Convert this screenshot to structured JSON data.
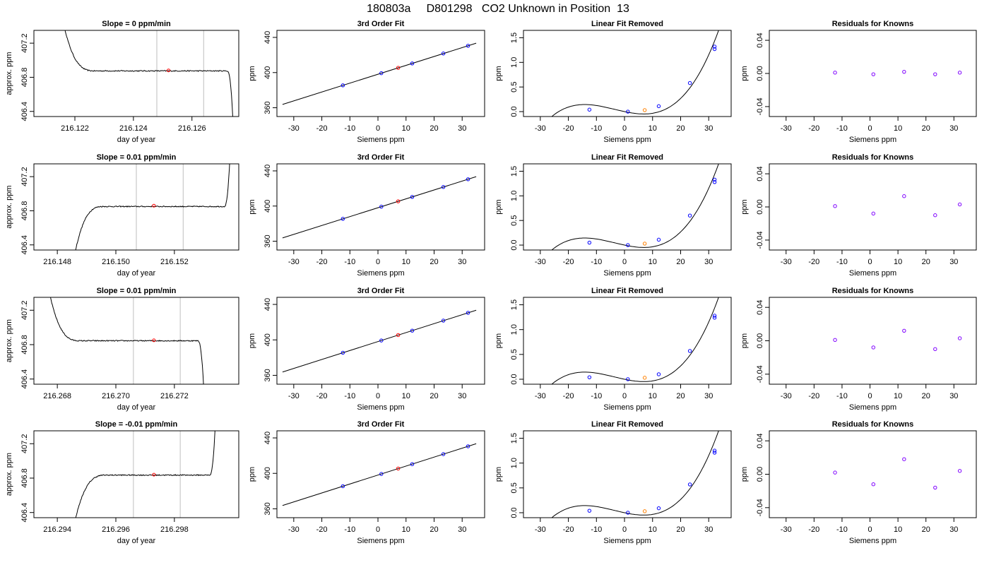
{
  "page_title": "180803a     D801298   CO2 Unknown in Position  13",
  "chart_data": [
    {
      "row": 1,
      "panel": "trace",
      "type": "line",
      "title": "Slope =  0  ppm/min",
      "xlabel": "day of year",
      "ylabel": "approx. ppm",
      "xlim": [
        216.1206,
        216.1276
      ],
      "ylim": [
        406.34,
        407.35
      ],
      "xticks": [
        216.122,
        216.124,
        216.126
      ],
      "xtick_labels": [
        "216.122",
        "216.124",
        "216.126"
      ],
      "yticks": [
        406.4,
        406.8,
        407.2
      ],
      "ytick_labels": [
        "406.4",
        "406.8",
        "407.2"
      ],
      "vlines": [
        216.1248,
        216.1264
      ],
      "shape": {
        "start": 216.1216,
        "rise": 216.1227,
        "fall": 216.1272,
        "end": 216.1274,
        "level": 406.875,
        "pre": 407.45,
        "post": 406.3,
        "noise": 0.012
      },
      "marker": {
        "x": 216.1252,
        "y": 406.88,
        "color": "#ff0000"
      }
    },
    {
      "row": 1,
      "panel": "fit",
      "type": "line",
      "title": "3rd Order Fit",
      "xlabel": "Siemens ppm",
      "ylabel": "ppm",
      "xlim": [
        -36,
        38
      ],
      "ylim": [
        350,
        448
      ],
      "xticks": [
        -30,
        -20,
        -10,
        0,
        10,
        20,
        30
      ],
      "yticks": [
        360,
        400,
        440
      ],
      "line": {
        "slope": 1.01,
        "intercept": 398.1,
        "x0": -34,
        "x1": 35
      },
      "points": [
        {
          "x": -12.5,
          "y": 385.5,
          "color": "#0000ff"
        },
        {
          "x": 1.2,
          "y": 399.3,
          "color": "#0000ff"
        },
        {
          "x": 7.2,
          "y": 405.4,
          "color": "#ff0000"
        },
        {
          "x": 12.2,
          "y": 410.4,
          "color": "#0000ff"
        },
        {
          "x": 23.3,
          "y": 421.7,
          "color": "#0000ff"
        },
        {
          "x": 32.1,
          "y": 430.5,
          "color": "#0000ff"
        }
      ]
    },
    {
      "row": 1,
      "panel": "linear_removed",
      "type": "scatter",
      "title": "Linear Fit Removed",
      "xlabel": "Siemens ppm",
      "ylabel": "ppm",
      "xlim": [
        -36,
        38
      ],
      "ylim": [
        -0.1,
        1.65
      ],
      "xticks": [
        -30,
        -20,
        -10,
        0,
        10,
        20,
        30
      ],
      "yticks": [
        0.0,
        0.5,
        1.0,
        1.5
      ],
      "ytick_labels": [
        "0.0",
        "0.5",
        "1.0",
        "1.5"
      ],
      "curve": {
        "c": [
          0.0,
          -0.012,
          0.00045,
          4.1e-05
        ],
        "x0": -33,
        "x1": 35
      },
      "points": [
        {
          "x": -12.5,
          "y": 0.04,
          "color": "#0000ff"
        },
        {
          "x": 1.2,
          "y": 0.0,
          "color": "#0000ff"
        },
        {
          "x": 7.2,
          "y": 0.03,
          "color": "#ff8000"
        },
        {
          "x": 12.2,
          "y": 0.11,
          "color": "#0000ff"
        },
        {
          "x": 23.3,
          "y": 0.58,
          "color": "#0000ff"
        },
        {
          "x": 32.1,
          "y": 1.27,
          "color": "#0000ff"
        },
        {
          "x": 32.1,
          "y": 1.32,
          "color": "#0000ff"
        }
      ]
    },
    {
      "row": 1,
      "panel": "residuals",
      "type": "scatter",
      "title": "Residuals for Knowns",
      "xlabel": "Siemens ppm",
      "ylabel": "ppm",
      "xlim": [
        -36,
        38
      ],
      "ylim": [
        -0.052,
        0.052
      ],
      "xticks": [
        -30,
        -20,
        -10,
        0,
        10,
        20,
        30
      ],
      "yticks": [
        -0.04,
        0.0,
        0.04
      ],
      "ytick_labels": [
        "-0.04",
        "0.00",
        "0.04"
      ],
      "points": [
        {
          "x": -12.5,
          "y": 0.001,
          "color": "#7f00ff"
        },
        {
          "x": 1.2,
          "y": -0.001,
          "color": "#7f00ff"
        },
        {
          "x": 12.2,
          "y": 0.002,
          "color": "#7f00ff"
        },
        {
          "x": 23.3,
          "y": -0.001,
          "color": "#7f00ff"
        },
        {
          "x": 32.1,
          "y": 0.001,
          "color": "#7f00ff"
        }
      ]
    },
    {
      "row": 2,
      "panel": "trace",
      "type": "line",
      "title": "Slope =  0.01  ppm/min",
      "xlabel": "day of year",
      "ylabel": "approx. ppm",
      "xlim": [
        216.1472,
        216.1542
      ],
      "ylim": [
        406.34,
        407.35
      ],
      "xticks": [
        216.148,
        216.15,
        216.152
      ],
      "xtick_labels": [
        "216.148",
        "216.150",
        "216.152"
      ],
      "yticks": [
        406.4,
        406.8,
        407.2
      ],
      "ytick_labels": [
        "406.4",
        "406.8",
        "407.2"
      ],
      "vlines": [
        216.1507,
        216.1523
      ],
      "shape": {
        "start": 216.1486,
        "rise": 216.1496,
        "fall": 216.1537,
        "end": 216.1539,
        "level": 406.85,
        "pre": 406.3,
        "post": 407.45,
        "noise": 0.012
      },
      "marker": {
        "x": 216.1513,
        "y": 406.86,
        "color": "#ff0000"
      }
    },
    {
      "row": 2,
      "panel": "fit",
      "type": "line",
      "title": "3rd Order Fit",
      "xlabel": "Siemens ppm",
      "ylabel": "ppm",
      "xlim": [
        -36,
        38
      ],
      "ylim": [
        350,
        448
      ],
      "xticks": [
        -30,
        -20,
        -10,
        0,
        10,
        20,
        30
      ],
      "yticks": [
        360,
        400,
        440
      ],
      "line": {
        "slope": 1.01,
        "intercept": 398.1,
        "x0": -34,
        "x1": 35
      },
      "points": [
        {
          "x": -12.5,
          "y": 385.5,
          "color": "#0000ff"
        },
        {
          "x": 1.2,
          "y": 399.3,
          "color": "#0000ff"
        },
        {
          "x": 7.2,
          "y": 405.4,
          "color": "#ff0000"
        },
        {
          "x": 12.2,
          "y": 410.4,
          "color": "#0000ff"
        },
        {
          "x": 23.3,
          "y": 421.7,
          "color": "#0000ff"
        },
        {
          "x": 32.1,
          "y": 430.5,
          "color": "#0000ff"
        }
      ]
    },
    {
      "row": 2,
      "panel": "linear_removed",
      "type": "scatter",
      "title": "Linear Fit Removed",
      "xlabel": "Siemens ppm",
      "ylabel": "ppm",
      "xlim": [
        -36,
        38
      ],
      "ylim": [
        -0.1,
        1.65
      ],
      "xticks": [
        -30,
        -20,
        -10,
        0,
        10,
        20,
        30
      ],
      "yticks": [
        0.0,
        0.5,
        1.0,
        1.5
      ],
      "ytick_labels": [
        "0.0",
        "0.5",
        "1.0",
        "1.5"
      ],
      "curve": {
        "c": [
          0.0,
          -0.012,
          0.00045,
          4.1e-05
        ],
        "x0": -33,
        "x1": 35
      },
      "points": [
        {
          "x": -12.5,
          "y": 0.05,
          "color": "#0000ff"
        },
        {
          "x": 1.2,
          "y": 0.0,
          "color": "#0000ff"
        },
        {
          "x": 7.2,
          "y": 0.03,
          "color": "#ff8000"
        },
        {
          "x": 12.2,
          "y": 0.11,
          "color": "#0000ff"
        },
        {
          "x": 23.3,
          "y": 0.6,
          "color": "#0000ff"
        },
        {
          "x": 32.1,
          "y": 1.28,
          "color": "#0000ff"
        },
        {
          "x": 32.1,
          "y": 1.33,
          "color": "#0000ff"
        }
      ]
    },
    {
      "row": 2,
      "panel": "residuals",
      "type": "scatter",
      "title": "Residuals for Knowns",
      "xlabel": "Siemens ppm",
      "ylabel": "ppm",
      "xlim": [
        -36,
        38
      ],
      "ylim": [
        -0.052,
        0.052
      ],
      "xticks": [
        -30,
        -20,
        -10,
        0,
        10,
        20,
        30
      ],
      "yticks": [
        -0.04,
        0.0,
        0.04
      ],
      "ytick_labels": [
        "-0.04",
        "0.00",
        "0.04"
      ],
      "points": [
        {
          "x": -12.5,
          "y": 0.001,
          "color": "#7f00ff"
        },
        {
          "x": 1.2,
          "y": -0.008,
          "color": "#7f00ff"
        },
        {
          "x": 12.2,
          "y": 0.013,
          "color": "#7f00ff"
        },
        {
          "x": 23.3,
          "y": -0.01,
          "color": "#7f00ff"
        },
        {
          "x": 32.1,
          "y": 0.003,
          "color": "#7f00ff"
        }
      ]
    },
    {
      "row": 3,
      "panel": "trace",
      "type": "line",
      "title": "Slope =  0.01  ppm/min",
      "xlabel": "day of year",
      "ylabel": "approx. ppm",
      "xlim": [
        216.2672,
        216.2742
      ],
      "ylim": [
        406.34,
        407.35
      ],
      "xticks": [
        216.268,
        216.27,
        216.272
      ],
      "xtick_labels": [
        "216.268",
        "216.270",
        "216.272"
      ],
      "yticks": [
        406.4,
        406.8,
        407.2
      ],
      "ytick_labels": [
        "406.4",
        "406.8",
        "407.2"
      ],
      "vlines": [
        216.2706,
        216.2722
      ],
      "shape": {
        "start": 216.2677,
        "rise": 216.2688,
        "fall": 216.2728,
        "end": 216.273,
        "level": 406.845,
        "pre": 407.45,
        "post": 406.3,
        "noise": 0.012
      },
      "marker": {
        "x": 216.2713,
        "y": 406.85,
        "color": "#ff0000"
      }
    },
    {
      "row": 3,
      "panel": "fit",
      "type": "line",
      "title": "3rd Order Fit",
      "xlabel": "Siemens ppm",
      "ylabel": "ppm",
      "xlim": [
        -36,
        38
      ],
      "ylim": [
        350,
        448
      ],
      "xticks": [
        -30,
        -20,
        -10,
        0,
        10,
        20,
        30
      ],
      "yticks": [
        360,
        400,
        440
      ],
      "line": {
        "slope": 1.01,
        "intercept": 398.1,
        "x0": -34,
        "x1": 35
      },
      "points": [
        {
          "x": -12.5,
          "y": 385.5,
          "color": "#0000ff"
        },
        {
          "x": 1.2,
          "y": 399.3,
          "color": "#0000ff"
        },
        {
          "x": 7.2,
          "y": 405.4,
          "color": "#ff0000"
        },
        {
          "x": 12.2,
          "y": 410.4,
          "color": "#0000ff"
        },
        {
          "x": 23.3,
          "y": 421.7,
          "color": "#0000ff"
        },
        {
          "x": 32.1,
          "y": 430.5,
          "color": "#0000ff"
        }
      ]
    },
    {
      "row": 3,
      "panel": "linear_removed",
      "type": "scatter",
      "title": "Linear Fit Removed",
      "xlabel": "Siemens ppm",
      "ylabel": "ppm",
      "xlim": [
        -36,
        38
      ],
      "ylim": [
        -0.1,
        1.65
      ],
      "xticks": [
        -30,
        -20,
        -10,
        0,
        10,
        20,
        30
      ],
      "yticks": [
        0.0,
        0.5,
        1.0,
        1.5
      ],
      "ytick_labels": [
        "0.0",
        "0.5",
        "1.0",
        "1.5"
      ],
      "curve": {
        "c": [
          0.0,
          -0.012,
          0.00045,
          4.1e-05
        ],
        "x0": -33,
        "x1": 35
      },
      "points": [
        {
          "x": -12.5,
          "y": 0.04,
          "color": "#0000ff"
        },
        {
          "x": 1.2,
          "y": 0.0,
          "color": "#0000ff"
        },
        {
          "x": 7.2,
          "y": 0.03,
          "color": "#ff8000"
        },
        {
          "x": 12.2,
          "y": 0.1,
          "color": "#0000ff"
        },
        {
          "x": 23.3,
          "y": 0.57,
          "color": "#0000ff"
        },
        {
          "x": 32.1,
          "y": 1.24,
          "color": "#0000ff"
        },
        {
          "x": 32.1,
          "y": 1.28,
          "color": "#0000ff"
        }
      ]
    },
    {
      "row": 3,
      "panel": "residuals",
      "type": "scatter",
      "title": "Residuals for Knowns",
      "xlabel": "Siemens ppm",
      "ylabel": "ppm",
      "xlim": [
        -36,
        38
      ],
      "ylim": [
        -0.052,
        0.052
      ],
      "xticks": [
        -30,
        -20,
        -10,
        0,
        10,
        20,
        30
      ],
      "yticks": [
        -0.04,
        0.0,
        0.04
      ],
      "ytick_labels": [
        "-0.04",
        "0.00",
        "0.04"
      ],
      "points": [
        {
          "x": -12.5,
          "y": 0.001,
          "color": "#7f00ff"
        },
        {
          "x": 1.2,
          "y": -0.008,
          "color": "#7f00ff"
        },
        {
          "x": 12.2,
          "y": 0.012,
          "color": "#7f00ff"
        },
        {
          "x": 23.3,
          "y": -0.01,
          "color": "#7f00ff"
        },
        {
          "x": 32.1,
          "y": 0.003,
          "color": "#7f00ff"
        }
      ]
    },
    {
      "row": 4,
      "panel": "trace",
      "type": "line",
      "title": "Slope =  -0.01  ppm/min",
      "xlabel": "day of year",
      "ylabel": "approx. ppm",
      "xlim": [
        216.2932,
        216.3002
      ],
      "ylim": [
        406.34,
        407.35
      ],
      "xticks": [
        216.294,
        216.296,
        216.298
      ],
      "xtick_labels": [
        "216.294",
        "216.296",
        "216.298"
      ],
      "yticks": [
        406.4,
        406.8,
        407.2
      ],
      "ytick_labels": [
        "406.4",
        "406.8",
        "407.2"
      ],
      "vlines": [
        216.2966,
        216.2982
      ],
      "shape": {
        "start": 216.2946,
        "rise": 216.2957,
        "fall": 216.2992,
        "end": 216.2994,
        "level": 406.835,
        "pre": 406.3,
        "post": 407.45,
        "noise": 0.012
      },
      "marker": {
        "x": 216.2973,
        "y": 406.84,
        "color": "#ff0000"
      }
    },
    {
      "row": 4,
      "panel": "fit",
      "type": "line",
      "title": "3rd Order Fit",
      "xlabel": "Siemens ppm",
      "ylabel": "ppm",
      "xlim": [
        -36,
        38
      ],
      "ylim": [
        350,
        448
      ],
      "xticks": [
        -30,
        -20,
        -10,
        0,
        10,
        20,
        30
      ],
      "yticks": [
        360,
        400,
        440
      ],
      "line": {
        "slope": 1.01,
        "intercept": 398.1,
        "x0": -34,
        "x1": 35
      },
      "points": [
        {
          "x": -12.5,
          "y": 385.5,
          "color": "#0000ff"
        },
        {
          "x": 1.2,
          "y": 399.3,
          "color": "#0000ff"
        },
        {
          "x": 7.2,
          "y": 405.4,
          "color": "#ff0000"
        },
        {
          "x": 12.2,
          "y": 410.4,
          "color": "#0000ff"
        },
        {
          "x": 23.3,
          "y": 421.7,
          "color": "#0000ff"
        },
        {
          "x": 32.1,
          "y": 430.5,
          "color": "#0000ff"
        }
      ]
    },
    {
      "row": 4,
      "panel": "linear_removed",
      "type": "scatter",
      "title": "Linear Fit Removed",
      "xlabel": "Siemens ppm",
      "ylabel": "ppm",
      "xlim": [
        -36,
        38
      ],
      "ylim": [
        -0.1,
        1.65
      ],
      "xticks": [
        -30,
        -20,
        -10,
        0,
        10,
        20,
        30
      ],
      "yticks": [
        0.0,
        0.5,
        1.0,
        1.5
      ],
      "ytick_labels": [
        "0.0",
        "0.5",
        "1.0",
        "1.5"
      ],
      "curve": {
        "c": [
          0.0,
          -0.012,
          0.00045,
          4.1e-05
        ],
        "x0": -33,
        "x1": 35
      },
      "points": [
        {
          "x": -12.5,
          "y": 0.04,
          "color": "#0000ff"
        },
        {
          "x": 1.2,
          "y": 0.0,
          "color": "#0000ff"
        },
        {
          "x": 7.2,
          "y": 0.03,
          "color": "#ff8000"
        },
        {
          "x": 12.2,
          "y": 0.09,
          "color": "#0000ff"
        },
        {
          "x": 23.3,
          "y": 0.57,
          "color": "#0000ff"
        },
        {
          "x": 32.1,
          "y": 1.21,
          "color": "#0000ff"
        },
        {
          "x": 32.1,
          "y": 1.25,
          "color": "#0000ff"
        }
      ]
    },
    {
      "row": 4,
      "panel": "residuals",
      "type": "scatter",
      "title": "Residuals for Knowns",
      "xlabel": "Siemens ppm",
      "ylabel": "ppm",
      "xlim": [
        -36,
        38
      ],
      "ylim": [
        -0.052,
        0.052
      ],
      "xticks": [
        -30,
        -20,
        -10,
        0,
        10,
        20,
        30
      ],
      "yticks": [
        -0.04,
        0.0,
        0.04
      ],
      "ytick_labels": [
        "-0.04",
        "0.00",
        "0.04"
      ],
      "points": [
        {
          "x": -12.5,
          "y": 0.002,
          "color": "#7f00ff"
        },
        {
          "x": 1.2,
          "y": -0.012,
          "color": "#7f00ff"
        },
        {
          "x": 12.2,
          "y": 0.018,
          "color": "#7f00ff"
        },
        {
          "x": 23.3,
          "y": -0.016,
          "color": "#7f00ff"
        },
        {
          "x": 32.1,
          "y": 0.004,
          "color": "#7f00ff"
        }
      ]
    }
  ]
}
